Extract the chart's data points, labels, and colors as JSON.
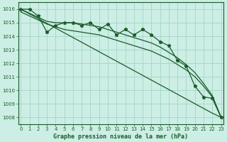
{
  "title": "Graphe pression niveau de la mer (hPa)",
  "background_color": "#cceee4",
  "grid_color": "#aad8cc",
  "line_color": "#1a5c2a",
  "x_values": [
    0,
    1,
    2,
    3,
    4,
    5,
    6,
    7,
    8,
    9,
    10,
    11,
    12,
    13,
    14,
    15,
    16,
    17,
    18,
    19,
    20,
    21,
    22,
    23
  ],
  "y_main": [
    1016.0,
    1016.0,
    1015.5,
    1014.3,
    1014.8,
    1015.0,
    1015.0,
    1014.8,
    1015.0,
    1014.5,
    1014.9,
    1014.1,
    1014.5,
    1014.1,
    1014.5,
    1014.1,
    1013.6,
    1013.3,
    1012.2,
    1011.8,
    1010.3,
    1009.5,
    1009.4,
    1008.0
  ],
  "y_smooth1": [
    1016.0,
    1015.7,
    1015.4,
    1015.1,
    1015.0,
    1015.0,
    1015.0,
    1014.9,
    1014.8,
    1014.7,
    1014.5,
    1014.3,
    1014.1,
    1013.9,
    1013.7,
    1013.5,
    1013.2,
    1012.8,
    1012.4,
    1011.9,
    1011.3,
    1010.5,
    1009.6,
    1008.0
  ],
  "y_smooth2": [
    1015.8,
    1015.5,
    1015.2,
    1014.9,
    1014.7,
    1014.5,
    1014.4,
    1014.3,
    1014.2,
    1014.1,
    1013.9,
    1013.7,
    1013.5,
    1013.3,
    1013.1,
    1012.9,
    1012.6,
    1012.3,
    1011.9,
    1011.5,
    1011.0,
    1010.3,
    1009.5,
    1008.0
  ],
  "y_linear": [
    1016.0,
    1015.65,
    1015.3,
    1014.95,
    1014.6,
    1014.25,
    1013.9,
    1013.55,
    1013.2,
    1012.85,
    1012.5,
    1012.15,
    1011.8,
    1011.45,
    1011.1,
    1010.75,
    1010.4,
    1010.05,
    1009.7,
    1009.35,
    1009.0,
    1008.65,
    1008.3,
    1008.0
  ],
  "ylim_min": 1007.5,
  "ylim_max": 1016.5,
  "xlim_min": -0.3,
  "xlim_max": 23.3,
  "yticks": [
    1008,
    1009,
    1010,
    1011,
    1012,
    1013,
    1014,
    1015,
    1016
  ],
  "xtick_labels": [
    "0",
    "1",
    "2",
    "3",
    "4",
    "5",
    "6",
    "7",
    "8",
    "9",
    "10",
    "11",
    "12",
    "13",
    "14",
    "15",
    "16",
    "17",
    "18",
    "19",
    "20",
    "21",
    "22",
    "23"
  ]
}
